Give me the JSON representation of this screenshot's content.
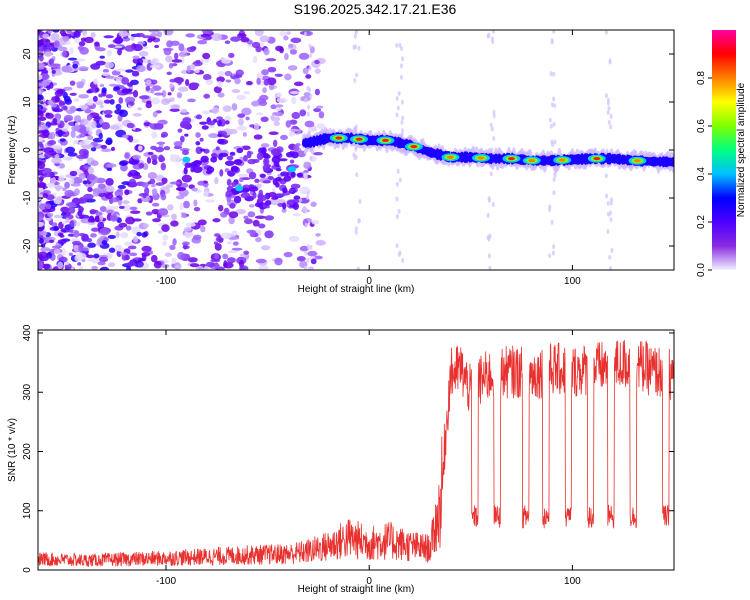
{
  "title": "S196.2025.342.17.21.E36",
  "chart_data": [
    {
      "type": "heatmap",
      "xlabel": "Height of straight line (km)",
      "ylabel": "Frequency (Hz)",
      "xlim": [
        -163,
        150
      ],
      "ylim": [
        -25,
        25
      ],
      "x_ticks": [
        -100,
        0,
        100
      ],
      "y_ticks": [
        -20,
        -10,
        0,
        10,
        20
      ],
      "colorbar": {
        "label": "Normalized spectral amplitude",
        "range": [
          0,
          1
        ],
        "ticks": [
          0.0,
          0.2,
          0.4,
          0.6,
          0.8
        ],
        "colormap": [
          "#f0f0ff",
          "#8a2be2",
          "#4b00ff",
          "#0000ff",
          "#00c0ff",
          "#00ff80",
          "#80ff00",
          "#ffff00",
          "#ff8000",
          "#ff0000",
          "#ff00a0"
        ]
      },
      "ridge": {
        "x": [
          -30,
          -20,
          -10,
          0,
          10,
          20,
          30,
          40,
          50,
          60,
          70,
          80,
          90,
          100,
          110,
          120,
          130,
          140,
          150
        ],
        "frequency": [
          1.5,
          2.5,
          2.5,
          2.0,
          2.0,
          1.0,
          -0.5,
          -1.5,
          -1.5,
          -1.8,
          -1.8,
          -2.2,
          -2.2,
          -2.0,
          -1.8,
          -1.8,
          -2.2,
          -2.4,
          -2.5
        ]
      },
      "grid": false
    },
    {
      "type": "line",
      "xlabel": "Height of straight line (km)",
      "ylabel": "SNR (10 * v/v)",
      "xlim": [
        -163,
        150
      ],
      "ylim": [
        0,
        405
      ],
      "x_ticks": [
        -100,
        0,
        100
      ],
      "y_ticks": [
        0,
        100,
        200,
        300,
        400
      ],
      "series": [
        {
          "color": "#e8302e",
          "x": [
            -160,
            -140,
            -120,
            -100,
            -80,
            -60,
            -40,
            -30,
            -20,
            -10,
            0,
            10,
            20,
            30,
            35,
            40,
            45,
            50,
            55,
            60,
            70,
            80,
            90,
            100,
            110,
            120,
            130,
            140,
            150
          ],
          "y": [
            20,
            18,
            20,
            22,
            25,
            28,
            30,
            35,
            45,
            60,
            50,
            55,
            45,
            40,
            120,
            330,
            340,
            300,
            320,
            330,
            335,
            330,
            340,
            335,
            340,
            345,
            350,
            335,
            330
          ]
        }
      ],
      "dropouts_x": [
        52,
        63,
        77,
        87,
        98,
        109,
        119,
        130,
        146
      ],
      "dropout_level": 90,
      "grid": false
    }
  ]
}
